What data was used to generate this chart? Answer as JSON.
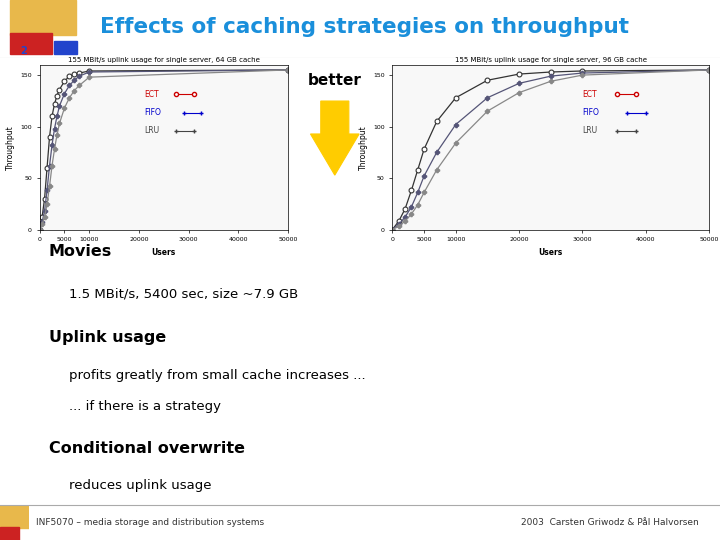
{
  "title": "Effects of caching strategies on throughput",
  "title_color": "#1a8fdb",
  "bg_color": "#ffffff",
  "slide_number": "2",
  "chart1_title": "155 MBit/s uplink usage for single server, 64 GB cache",
  "chart2_title": "155 MBit/s uplink usage for single server, 96 GB cache",
  "xlabel": "Users",
  "ylabel": "Throughput",
  "xlim": [
    0,
    50000
  ],
  "ylim": [
    0,
    160
  ],
  "xticks": [
    0,
    5000,
    10000,
    20000,
    30000,
    40000,
    50000
  ],
  "yticks": [
    0,
    50,
    100,
    150
  ],
  "chart1_ect_x": [
    0,
    500,
    1000,
    1500,
    2000,
    2500,
    3000,
    3500,
    4000,
    5000,
    6000,
    7000,
    8000,
    10000,
    50000
  ],
  "chart1_ect_y": [
    0,
    12,
    30,
    60,
    90,
    110,
    122,
    130,
    136,
    144,
    149,
    151,
    152,
    154,
    155
  ],
  "chart1_fifo_x": [
    0,
    500,
    1000,
    1500,
    2000,
    2500,
    3000,
    3500,
    4000,
    5000,
    6000,
    7000,
    8000,
    10000,
    50000
  ],
  "chart1_fifo_y": [
    0,
    7,
    18,
    38,
    62,
    82,
    98,
    110,
    120,
    132,
    140,
    145,
    149,
    153,
    155
  ],
  "chart1_lru_x": [
    0,
    500,
    1000,
    1500,
    2000,
    2500,
    3000,
    3500,
    4000,
    5000,
    6000,
    7000,
    8000,
    10000,
    50000
  ],
  "chart1_lru_y": [
    0,
    5,
    12,
    25,
    42,
    62,
    78,
    92,
    103,
    118,
    128,
    135,
    140,
    148,
    155
  ],
  "chart2_ect_x": [
    0,
    1000,
    2000,
    3000,
    4000,
    5000,
    7000,
    10000,
    15000,
    20000,
    25000,
    30000,
    50000
  ],
  "chart2_ect_y": [
    0,
    8,
    20,
    38,
    58,
    78,
    105,
    128,
    145,
    151,
    153,
    154,
    155
  ],
  "chart2_fifo_x": [
    0,
    1000,
    2000,
    3000,
    4000,
    5000,
    7000,
    10000,
    15000,
    20000,
    25000,
    30000,
    50000
  ],
  "chart2_fifo_y": [
    0,
    5,
    12,
    22,
    36,
    52,
    75,
    102,
    128,
    142,
    149,
    152,
    155
  ],
  "chart2_lru_x": [
    0,
    1000,
    2000,
    3000,
    4000,
    5000,
    7000,
    10000,
    15000,
    20000,
    25000,
    30000,
    50000
  ],
  "chart2_lru_y": [
    0,
    3,
    8,
    15,
    24,
    36,
    58,
    84,
    115,
    133,
    144,
    150,
    155
  ],
  "ect_color": "#333333",
  "fifo_color": "#555577",
  "lru_color": "#888888",
  "ect_legend_color": "#cc0000",
  "fifo_legend_color": "#0000cc",
  "lru_legend_color": "#444444",
  "better_text": "better",
  "better_arrow_color": "#ffcc00",
  "bullet_color": "#2244cc",
  "sub_bullet_color": "#cc2222",
  "footer_left": "INF5070 – media storage and distribution systems",
  "footer_right": "2003  Carsten Griwodz & Pål Halvorsen",
  "corner_yellow": "#e8b84b",
  "corner_red": "#cc2222",
  "corner_blue": "#2244cc"
}
